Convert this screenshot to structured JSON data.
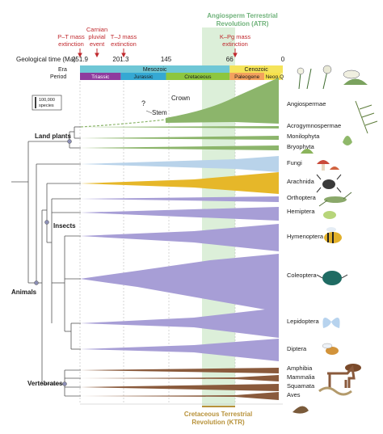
{
  "atr": {
    "line1": "Angiosperm Terrestrial",
    "line2": "Revolution (ATR)",
    "color": "#6fb27a"
  },
  "ktr": {
    "line1": "Cretaceous Terrestrial",
    "line2": "Revolution (KTR)",
    "color": "#b8923a"
  },
  "events": {
    "pt": {
      "line1": "P–T mass",
      "line2": "extinction"
    },
    "carnian": {
      "line1": "Carnian",
      "line2": "pluvial",
      "line3": "event"
    },
    "tj": {
      "line1": "T–J mass",
      "line2": "extinction"
    },
    "kpg": {
      "line1": "K–Pg mass",
      "line2": "extinction"
    },
    "color": "#c0282d"
  },
  "axis": {
    "label": "Geological time (Ma)",
    "ticks": [
      {
        "label": "251.9",
        "ma": 251.9
      },
      {
        "label": "201.3",
        "ma": 201.3
      },
      {
        "label": "145",
        "ma": 145
      },
      {
        "label": "66",
        "ma": 66
      },
      {
        "label": "0",
        "ma": 0
      }
    ]
  },
  "era_label": "Era",
  "period_label": "Period",
  "eras": [
    {
      "name": "Mesozoic",
      "color": "#6fc7d6"
    },
    {
      "name": "Cenozoic",
      "color": "#f5e45a"
    }
  ],
  "periods": [
    {
      "name": "Triassic",
      "color": "#8e3c9e",
      "text": "#ffffff"
    },
    {
      "name": "Jurassic",
      "color": "#35a8d3",
      "text": "#1a1a1a"
    },
    {
      "name": "Cretaceous",
      "color": "#8dc63f",
      "text": "#1a1a1a"
    },
    {
      "name": "Paleogene",
      "color": "#f3a15d",
      "text": "#1a1a1a"
    },
    {
      "name": "Neog.",
      "color": "#f7e14c",
      "text": "#1a1a1a"
    },
    {
      "name": "Q",
      "color": "#fbf08a",
      "text": "#1a1a1a"
    }
  ],
  "scale_bar": {
    "line1": "100,000",
    "line2": "species"
  },
  "annotations": {
    "crown": "Crown",
    "stem": "Stem",
    "question": "?"
  },
  "groups": {
    "land_plants": "Land plants",
    "insects": "Insects",
    "animals": "Animals",
    "vertebrates": "Vertebrates"
  },
  "taxa": [
    {
      "name": "Angiospermae",
      "color": "#8cb56b"
    },
    {
      "name": "Acrogymnospermae",
      "color": "#8cb56b"
    },
    {
      "name": "Monilophyta",
      "color": "#8cb56b"
    },
    {
      "name": "Bryophyta",
      "color": "#8cb56b"
    },
    {
      "name": "Fungi",
      "color": "#b9d3ea"
    },
    {
      "name": "Arachnida",
      "color": "#e6b729"
    },
    {
      "name": "Orthoptera",
      "color": "#a79ed6"
    },
    {
      "name": "Hemiptera",
      "color": "#a79ed6"
    },
    {
      "name": "Hymenoptera",
      "color": "#a79ed6"
    },
    {
      "name": "Coleoptera",
      "color": "#a79ed6"
    },
    {
      "name": "Lepidoptera",
      "color": "#a79ed6"
    },
    {
      "name": "Diptera",
      "color": "#a79ed6"
    },
    {
      "name": "Amphibia",
      "color": "#8a5a3c"
    },
    {
      "name": "Mammalia",
      "color": "#8a5a3c"
    },
    {
      "name": "Squamata",
      "color": "#8a5a3c"
    },
    {
      "name": "Aves",
      "color": "#8a5a3c"
    }
  ],
  "icons": [
    "flower-icon",
    "fern-icon",
    "mushroom-icon",
    "spider-icon",
    "grasshopper-icon",
    "aphid-icon",
    "bee-icon",
    "beetle-icon",
    "butterfly-icon",
    "fly-icon",
    "frog-icon",
    "horse-icon",
    "snake-icon",
    "bird-icon",
    "pine-icon",
    "moss-icon"
  ]
}
